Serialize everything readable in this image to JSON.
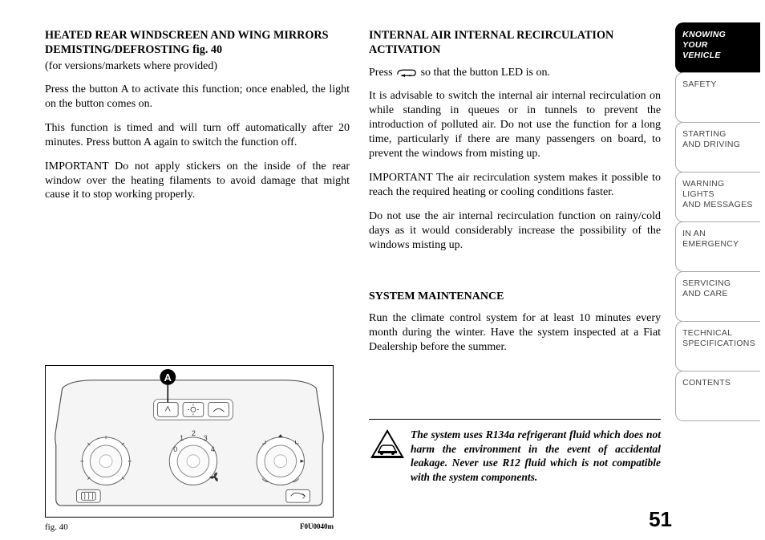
{
  "left": {
    "heading": "HEATED REAR WINDSCREEN AND WING MIRRORS DEMISTING/DEFROSTING fig. 40",
    "sub": "(for versions/markets where provided)",
    "p1": "Press the button A to activate this function; once enabled, the light on the button comes on.",
    "p2": "This function is timed and will turn off automatically after 20 minutes. Press button A again to switch the function off.",
    "p3": "IMPORTANT Do not apply stickers on the inside of the rear window over the heating filaments to avoid damage that might cause it to stop working properly.",
    "fig_label": "fig. 40",
    "fig_code": "F0U0040m",
    "callout": "A"
  },
  "right": {
    "heading1": "INTERNAL AIR INTERNAL RECIRCULATION ACTIVATION",
    "p1a": "Press ",
    "p1b": " so that the button LED is on.",
    "p2": "It is advisable to switch the internal air internal recirculation on while standing in queues or in tunnels to prevent the introduction of polluted air. Do not use the function for a long time, particularly if there are many passengers on board, to prevent the windows from misting up.",
    "p3": "IMPORTANT The air recirculation system makes it possible to reach the required heating or cooling conditions faster.",
    "p4": "Do not use the air internal recirculation function on rainy/cold days as it would considerably increase the possibility of the windows misting up.",
    "heading2": "SYSTEM MAINTENANCE",
    "p5": "Run the climate control system for at least 10 minutes every month during the winter. Have the system inspected at a Fiat Dealership before the summer.",
    "warning": "The system uses R134a refrigerant fluid which does not harm the environment in the event of accidental leakage. Never use R12 fluid which is not compatible with the system components."
  },
  "tabs": [
    {
      "label": "KNOWING\nYOUR\nVEHICLE",
      "active": true
    },
    {
      "label": "SAFETY",
      "active": false
    },
    {
      "label": "STARTING\nAND DRIVING",
      "active": false
    },
    {
      "label": "WARNING LIGHTS\nAND MESSAGES",
      "active": false
    },
    {
      "label": "IN AN\nEMERGENCY",
      "active": false
    },
    {
      "label": "SERVICING\nAND CARE",
      "active": false
    },
    {
      "label": "TECHNICAL\nSPECIFICATIONS",
      "active": false
    },
    {
      "label": "CONTENTS",
      "active": false
    }
  ],
  "page_number": "51"
}
